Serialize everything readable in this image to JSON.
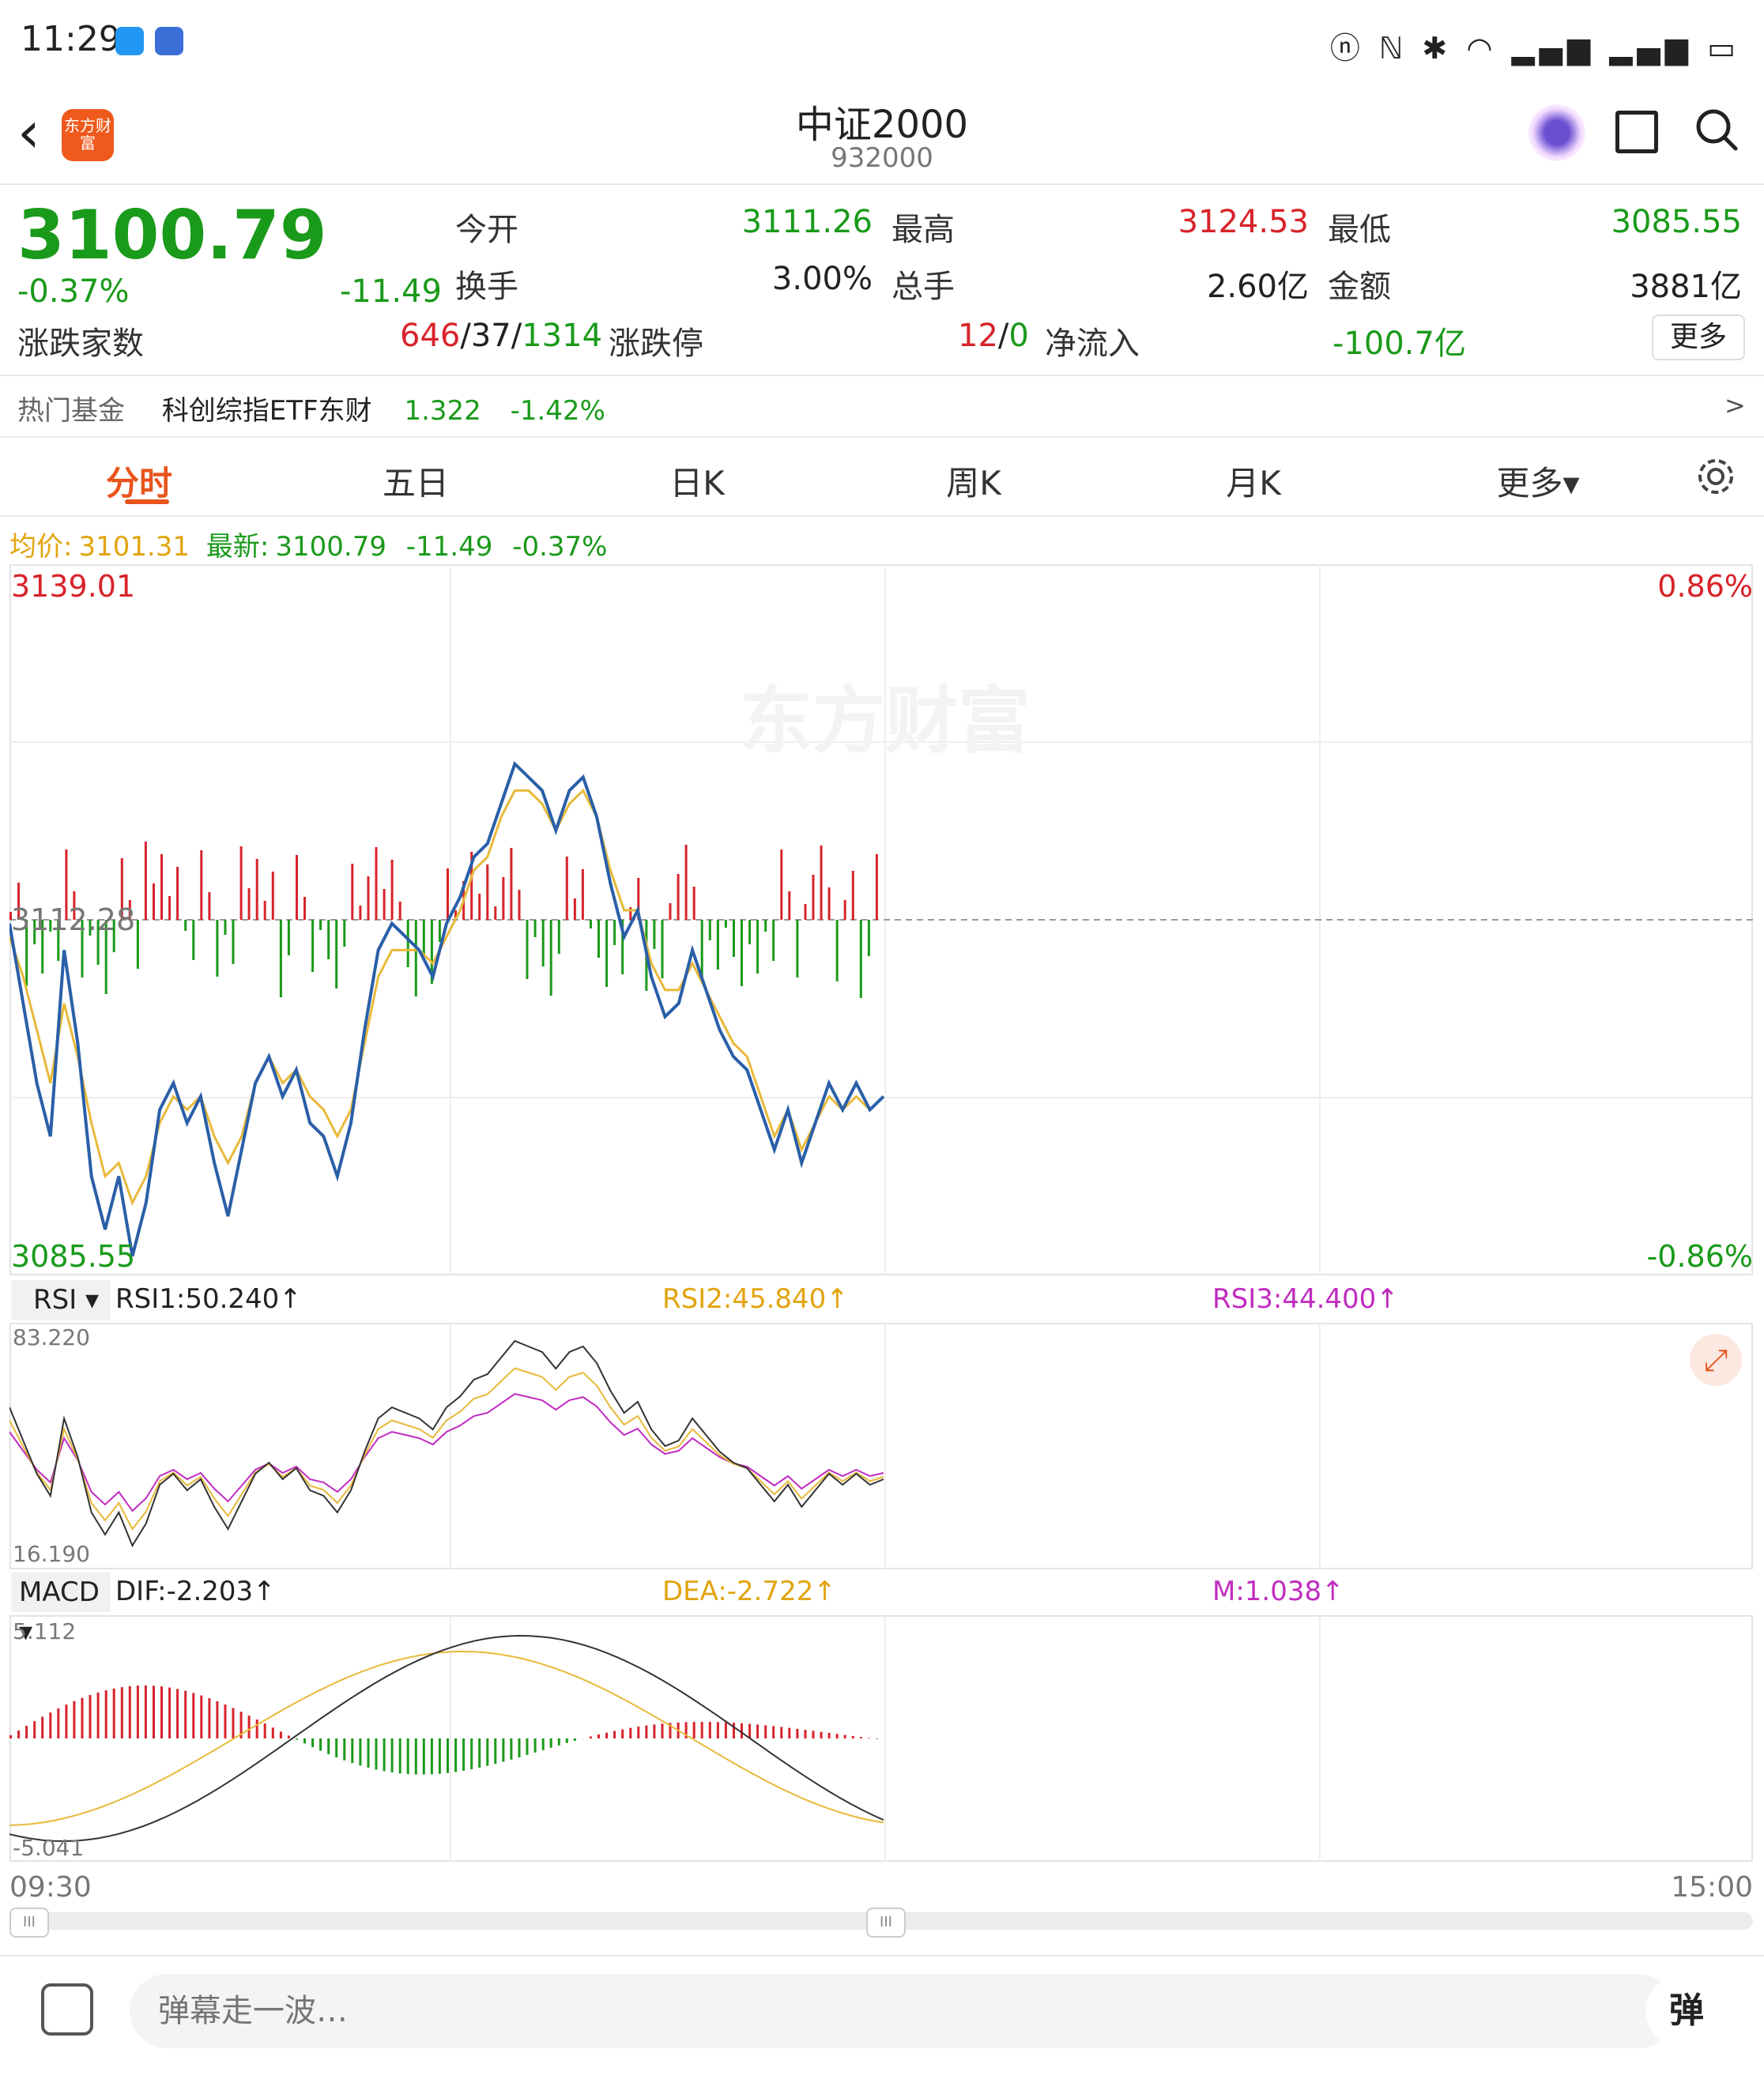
{
  "status": {
    "time": "11:29",
    "sys_icons": "ⓝ ℕ ✱ ◠ ▂▄▆ ▂▄▆ ▭"
  },
  "header": {
    "logo_text": "东方财富",
    "title": "中证2000",
    "code": "932000"
  },
  "quote": {
    "price": "3100.79",
    "change_pct": "-0.37%",
    "change_abs": "-11.49",
    "open_label": "今开",
    "open": "3111.26",
    "high_label": "最高",
    "high": "3124.53",
    "low_label": "最低",
    "low": "3085.55",
    "turnover_label": "换手",
    "turnover": "3.00%",
    "volume_label": "总手",
    "volume": "2.60亿",
    "amount_label": "金额",
    "amount": "3881亿",
    "breadth_label": "涨跌家数",
    "up": "646",
    "flat": "37",
    "down": "1314",
    "limit_label": "涨跌停",
    "limit_up": "12",
    "limit_down": "0",
    "netflow_label": "净流入",
    "netflow": "-100.7亿",
    "more_label": "更多"
  },
  "fund": {
    "label": "热门基金",
    "name": "科创综指ETF东财",
    "price": "1.322",
    "change": "-1.42%",
    "arrow": ">"
  },
  "tabs": {
    "t1": "分时",
    "t2": "五日",
    "t3": "日K",
    "t4": "周K",
    "t5": "月K",
    "t6": "更多▾"
  },
  "info_line": {
    "avg_label": "均价:",
    "avg": "3101.31",
    "latest_label": "最新:",
    "latest": "3100.79",
    "chg": "-11.49",
    "pct": "-0.37%"
  },
  "main_chart": {
    "top": "3139.01",
    "mid": "3112.28",
    "bottom": "3085.55",
    "top_pct": "0.86%",
    "bottom_pct": "-0.86%",
    "watermark": "东方财富"
  },
  "rsi": {
    "selector": "RSI",
    "rsi1": "RSI1:50.240↑",
    "rsi2": "RSI2:45.840↑",
    "rsi3": "RSI3:44.400↑",
    "max": "83.220",
    "min": "16.190"
  },
  "macd": {
    "selector": "MACD",
    "dif": "DIF:-2.203↑",
    "dea": "DEA:-2.722↑",
    "m": "M:1.038↑",
    "max": "5.112",
    "min": "-5.041"
  },
  "time_axis": {
    "start": "09:30",
    "end": "15:00"
  },
  "scroll": {
    "handle": "III"
  },
  "bottom_bar": {
    "placeholder": "弹幕走一波…",
    "send": "弹"
  },
  "colors": {
    "red": "#d8232a",
    "green": "#1a9a1a",
    "gold": "#e2a40f",
    "blue": "#2a5fa8",
    "magenta": "#c02cc0",
    "accent": "#e8541b"
  },
  "chart_data": {
    "type": "line",
    "ylim": [
      3085.55,
      3139.01
    ],
    "prev_close": 3112.28,
    "series": [
      {
        "values": [
          3112,
          3106,
          3100,
          3096,
          3110,
          3103,
          3093,
          3089,
          3093,
          3087,
          3091,
          3098,
          3100,
          3097,
          3099,
          3094,
          3090,
          3095,
          3100,
          3102,
          3099,
          3101,
          3097,
          3096,
          3093,
          3097,
          3104,
          3110,
          3112,
          3111,
          3110,
          3108,
          3112,
          3114,
          3117,
          3118,
          3121,
          3124,
          3123,
          3122,
          3119,
          3122,
          3123,
          3120,
          3115,
          3111,
          3113,
          3108,
          3105,
          3106,
          3110,
          3107,
          3104,
          3102,
          3101,
          3098,
          3095,
          3098,
          3094,
          3097,
          3100,
          3098,
          3100,
          3098,
          3099
        ]
      },
      {
        "values": [
          3111,
          3108,
          3104,
          3100,
          3106,
          3102,
          3097,
          3093,
          3094,
          3091,
          3093,
          3097,
          3099,
          3098,
          3099,
          3096,
          3094,
          3096,
          3100,
          3102,
          3100,
          3101,
          3099,
          3098,
          3096,
          3098,
          3103,
          3108,
          3110,
          3110,
          3110,
          3109,
          3111,
          3113,
          3116,
          3117,
          3120,
          3122,
          3122,
          3121,
          3119,
          3121,
          3122,
          3120,
          3116,
          3113,
          3113,
          3109,
          3107,
          3107,
          3109,
          3107,
          3105,
          3103,
          3102,
          3099,
          3096,
          3098,
          3095,
          3097,
          3099,
          3098,
          3099,
          3098,
          3099
        ]
      }
    ]
  }
}
